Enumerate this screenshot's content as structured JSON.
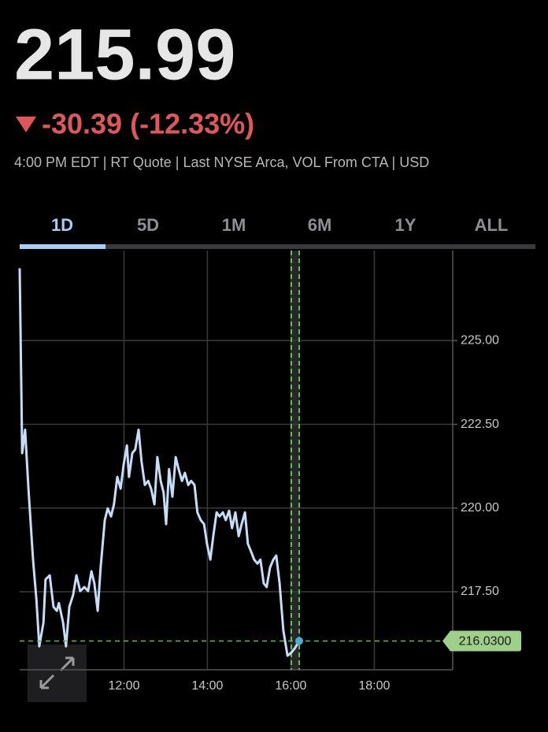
{
  "quote": {
    "price": "215.99",
    "change": "-30.39 (-12.33%)",
    "info": "4:00 PM EDT | RT Quote | Last NYSE Arca, VOL From CTA | USD"
  },
  "tabs": [
    "1D",
    "5D",
    "1M",
    "6M",
    "1Y",
    "ALL"
  ],
  "chart_data": {
    "type": "line",
    "x": [
      9.5,
      9.56,
      9.63,
      9.71,
      9.82,
      9.9,
      9.97,
      10.07,
      10.12,
      10.22,
      10.31,
      10.39,
      10.44,
      10.54,
      10.61,
      10.69,
      10.78,
      10.86,
      10.95,
      11.05,
      11.14,
      11.22,
      11.29,
      11.37,
      11.44,
      11.54,
      11.61,
      11.69,
      11.76,
      11.84,
      11.92,
      11.99,
      12.07,
      12.12,
      12.2,
      12.27,
      12.35,
      12.42,
      12.5,
      12.58,
      12.65,
      12.73,
      12.8,
      12.88,
      12.95,
      13.01,
      13.08,
      13.16,
      13.24,
      13.31,
      13.39,
      13.46,
      13.54,
      13.61,
      13.69,
      13.76,
      13.84,
      13.92,
      13.99,
      14.07,
      14.14,
      14.22,
      14.29,
      14.37,
      14.44,
      14.52,
      14.59,
      14.67,
      14.75,
      14.82,
      14.9,
      14.97,
      15.05,
      15.12,
      15.2,
      15.27,
      15.35,
      15.42,
      15.5,
      15.58,
      15.65,
      15.73,
      15.82,
      15.92,
      16.01,
      16.1,
      16.2
    ],
    "series": [
      {
        "color": "#c6dcf7",
        "values": [
          227.16,
          221.64,
          222.34,
          220.58,
          218.46,
          217.28,
          215.87,
          216.58,
          217.87,
          217.99,
          217.05,
          216.93,
          217.16,
          216.58,
          215.87,
          217.05,
          217.4,
          217.99,
          217.52,
          217.64,
          217.52,
          218.11,
          217.75,
          216.93,
          218.22,
          219.64,
          219.99,
          219.75,
          220.11,
          220.93,
          220.58,
          221.28,
          221.87,
          220.93,
          221.64,
          221.75,
          222.34,
          221.4,
          220.69,
          220.81,
          220.58,
          220.11,
          221.52,
          220.81,
          220.46,
          219.52,
          221.16,
          220.34,
          221.52,
          221.16,
          220.81,
          221.05,
          220.69,
          220.81,
          220.69,
          219.87,
          219.64,
          219.52,
          218.93,
          218.46,
          219.16,
          219.87,
          219.75,
          219.87,
          219.64,
          219.92,
          219.4,
          219.87,
          219.16,
          219.52,
          219.87,
          218.93,
          218.69,
          218.46,
          218.34,
          218.46,
          217.75,
          217.64,
          218.22,
          218.46,
          218.58,
          217.75,
          216.34,
          215.59,
          215.68,
          215.82,
          216.03
        ]
      }
    ],
    "xlim": [
      9.5,
      19.88
    ],
    "ylim": [
      215.17,
      227.69
    ],
    "xticks": [
      {
        "value": 12,
        "label": "12:00"
      },
      {
        "value": 14,
        "label": "14:00"
      },
      {
        "value": 16,
        "label": "16:00"
      },
      {
        "value": 18,
        "label": "18:00"
      }
    ],
    "yticks": [
      {
        "value": 217.5,
        "label": "217.50"
      },
      {
        "value": 220,
        "label": "220.00"
      },
      {
        "value": 222.5,
        "label": "222.50"
      },
      {
        "value": 225,
        "label": "225.00"
      }
    ],
    "last_price": {
      "value": 216.03,
      "label": "216.0300"
    },
    "grid": true
  }
}
